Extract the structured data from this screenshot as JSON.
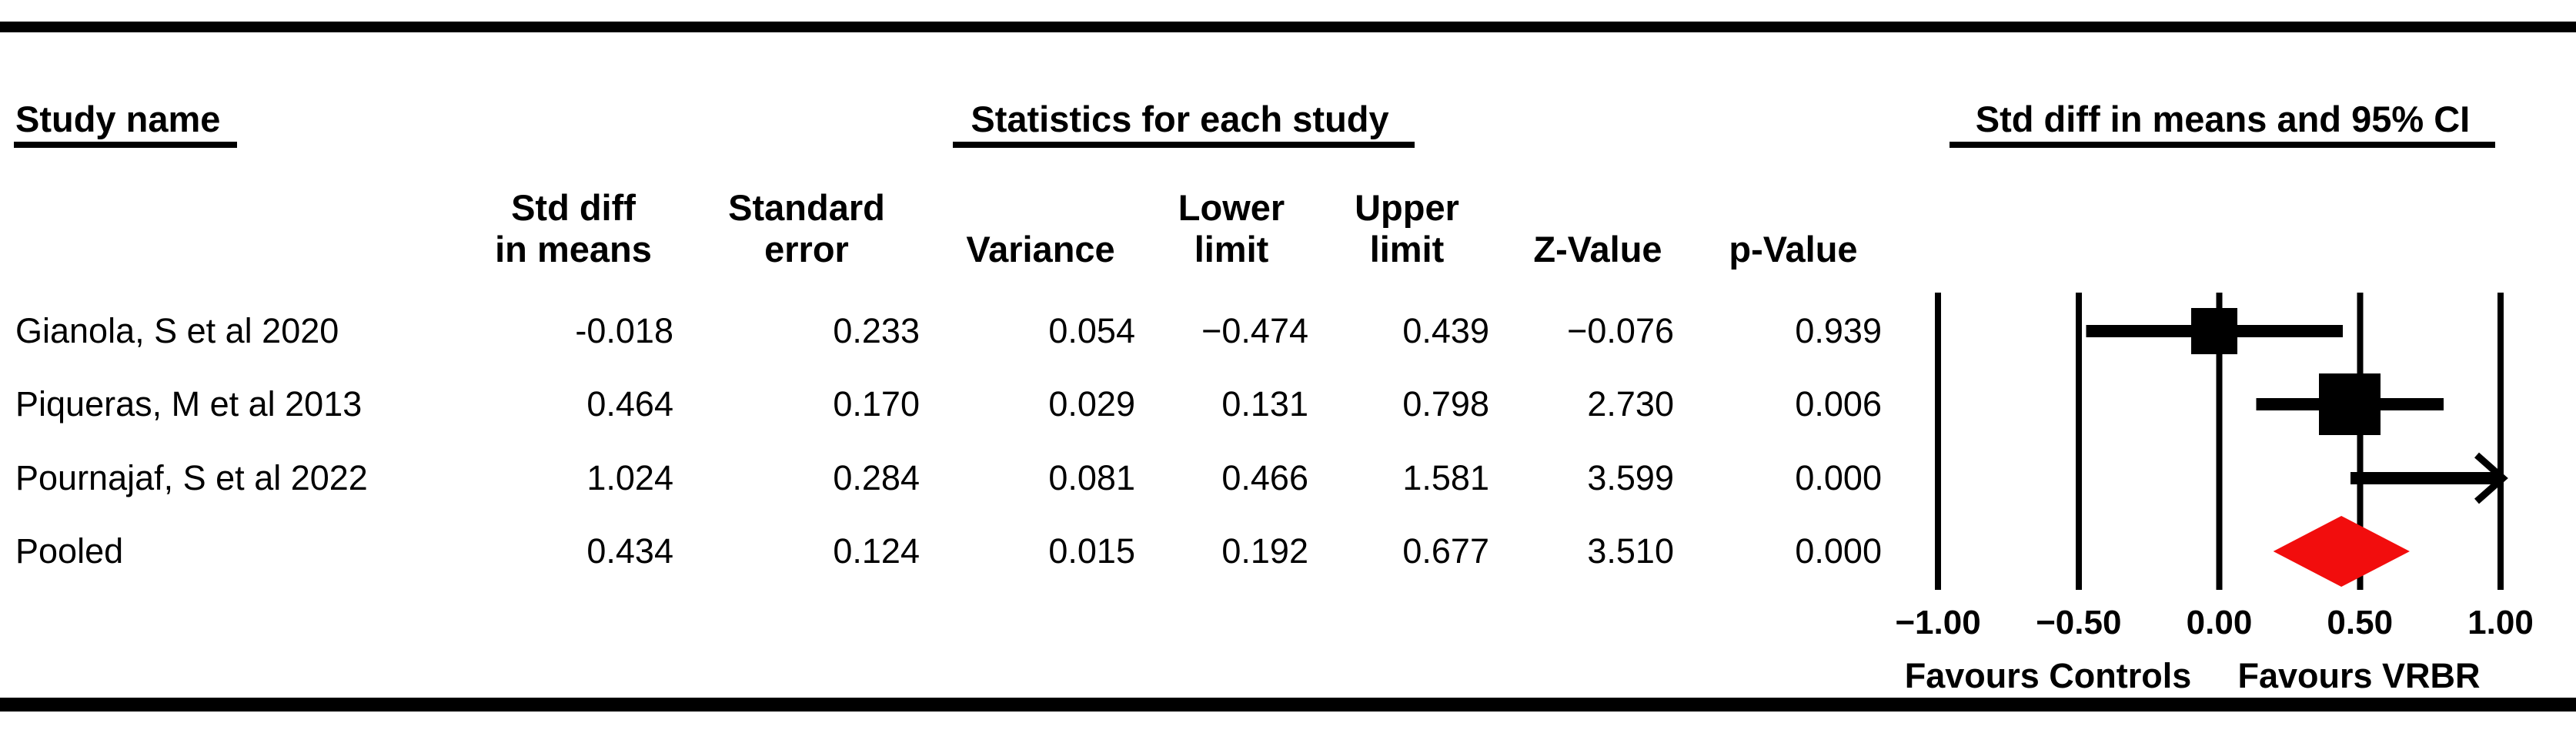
{
  "header": {
    "study_col": "Study name",
    "stats_col": "Statistics for each study",
    "plot_col": "Std diff in means and 95% CI"
  },
  "stat_columns": [
    {
      "line1": "Std diff",
      "line2": "in means"
    },
    {
      "line1": "Standard",
      "line2": "error"
    },
    {
      "line1": "",
      "line2": "Variance"
    },
    {
      "line1": "Lower",
      "line2": "limit"
    },
    {
      "line1": "Upper",
      "line2": "limit"
    },
    {
      "line1": "",
      "line2": "Z-Value"
    },
    {
      "line1": "",
      "line2": "p-Value"
    }
  ],
  "rows": [
    {
      "study": "Gianola, S et al 2020",
      "std_diff": "-0.018",
      "std_err": "0.233",
      "variance": "0.054",
      "lower": "−0.474",
      "upper": "0.439",
      "z": "−0.076",
      "p": "0.939"
    },
    {
      "study": "Piqueras, M et al 2013",
      "std_diff": "0.464",
      "std_err": "0.170",
      "variance": "0.029",
      "lower": "0.131",
      "upper": "0.798",
      "z": "2.730",
      "p": "0.006"
    },
    {
      "study": "Pournajaf, S et al 2022",
      "std_diff": "1.024",
      "std_err": "0.284",
      "variance": "0.081",
      "lower": "0.466",
      "upper": "1.581",
      "z": "3.599",
      "p": "0.000"
    },
    {
      "study": "Pooled",
      "std_diff": "0.434",
      "std_err": "0.124",
      "variance": "0.015",
      "lower": "0.192",
      "upper": "0.677",
      "z": "3.510",
      "p": "0.000"
    }
  ],
  "footer": {
    "left": "Favours Controls",
    "right": "Favours VRBR"
  },
  "colors": {
    "marker_black": "#000000",
    "diamond_red": "#f20d0d"
  },
  "chart_data": {
    "type": "forest",
    "title": "Std diff in means and 95% CI",
    "x_axis": {
      "min": -1.0,
      "max": 1.0,
      "ticks": [
        -1.0,
        -0.5,
        0.0,
        0.5,
        1.0
      ],
      "tick_labels": [
        "−1.00",
        "−0.50",
        "0.00",
        "0.50",
        "1.00"
      ],
      "label_left": "Favours Controls",
      "label_right": "Favours VRBR",
      "grid": "vertical-lines"
    },
    "studies": [
      {
        "name": "Gianola, S et al 2020",
        "std_diff_in_means": -0.018,
        "standard_error": 0.233,
        "variance": 0.054,
        "lower_limit": -0.474,
        "upper_limit": 0.439,
        "z_value": -0.076,
        "p_value": 0.939,
        "marker": "square",
        "marker_size_px": 60
      },
      {
        "name": "Piqueras, M et al 2013",
        "std_diff_in_means": 0.464,
        "standard_error": 0.17,
        "variance": 0.029,
        "lower_limit": 0.131,
        "upper_limit": 0.798,
        "z_value": 2.73,
        "p_value": 0.006,
        "marker": "square",
        "marker_size_px": 80
      },
      {
        "name": "Pournajaf, S et al 2022",
        "std_diff_in_means": 1.024,
        "standard_error": 0.284,
        "variance": 0.081,
        "lower_limit": 0.466,
        "upper_limit": 1.581,
        "z_value": 3.599,
        "p_value": 0.0,
        "marker": "none",
        "marker_size_px": 0
      },
      {
        "name": "Pooled",
        "std_diff_in_means": 0.434,
        "standard_error": 0.124,
        "variance": 0.015,
        "lower_limit": 0.192,
        "upper_limit": 0.677,
        "z_value": 3.51,
        "p_value": 0.0,
        "marker": "diamond",
        "marker_size_px": 92
      }
    ]
  }
}
